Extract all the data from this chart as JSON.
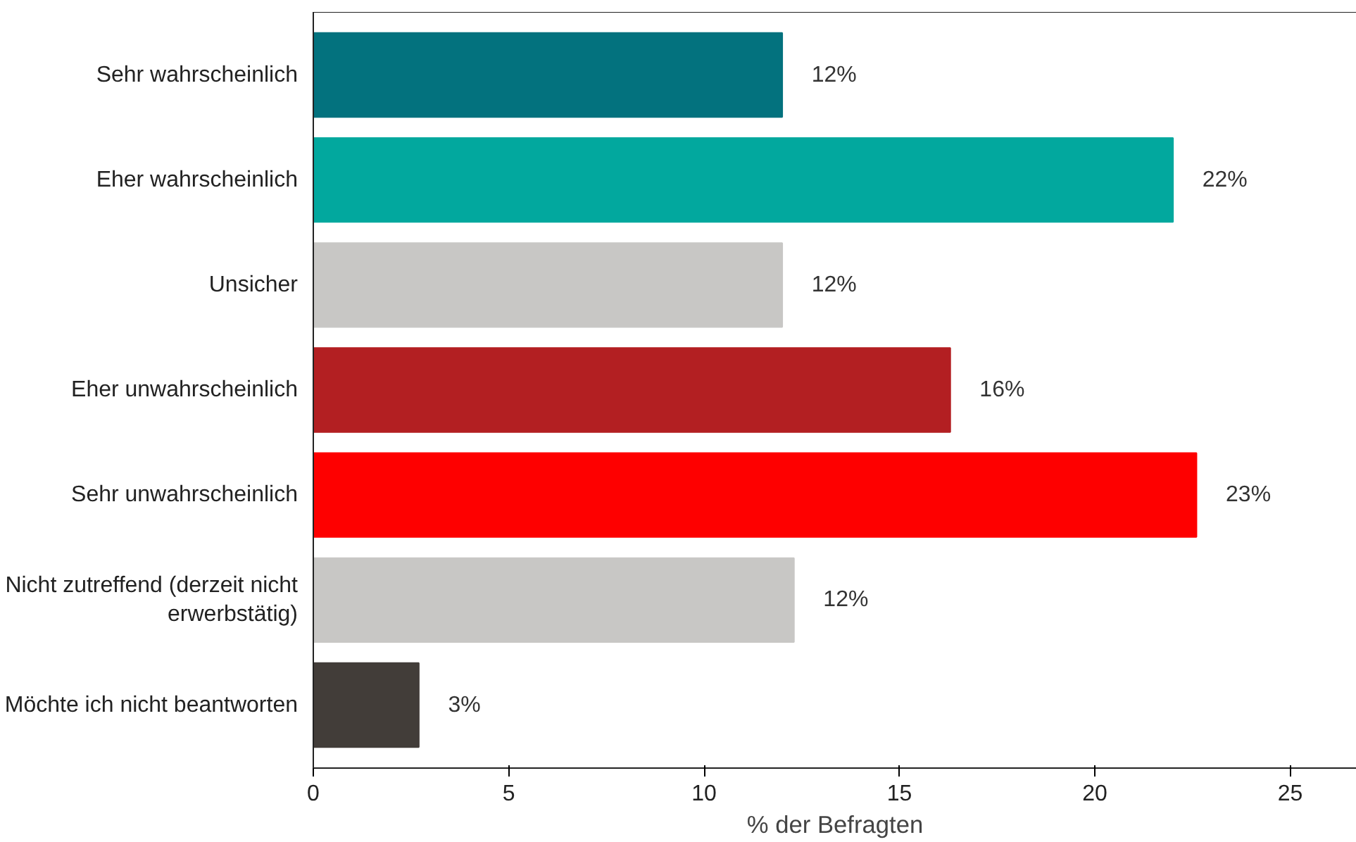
{
  "chart_data": {
    "type": "bar",
    "orientation": "horizontal",
    "xlabel": "% der Befragten",
    "categories": [
      "Sehr wahrscheinlich",
      "Eher wahrscheinlich",
      "Unsicher",
      "Eher unwahrscheinlich",
      "Sehr unwahrscheinlich",
      "Nicht zutreffend (derzeit nicht\nerwerbstätig)",
      "Möchte ich nicht beantworten"
    ],
    "values": [
      12,
      22,
      12,
      16.3,
      22.6,
      12.3,
      2.7
    ],
    "value_labels": [
      "12%",
      "22%",
      "12%",
      "16%",
      "23%",
      "12%",
      "3%"
    ],
    "colors": [
      "#03727e",
      "#02a89e",
      "#c8c7c5",
      "#b31f22",
      "#fe0000",
      "#c8c7c5",
      "#423d39"
    ],
    "xlim": [
      0,
      26.7
    ],
    "xticks": [
      0,
      5,
      10,
      15,
      20,
      25
    ],
    "grid": false
  }
}
